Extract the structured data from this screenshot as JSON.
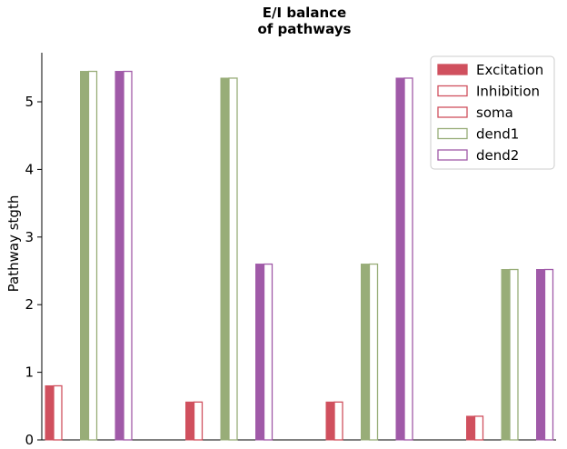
{
  "chart_data": {
    "type": "bar",
    "title_line1": "E/I balance",
    "title_line2": "of pathways",
    "xlabel": "",
    "ylabel": "Pathway stgth",
    "ylim": [
      0,
      5.75
    ],
    "yticks": [
      "0",
      "1",
      "2",
      "3",
      "4",
      "5"
    ],
    "groups": 4,
    "series": [
      {
        "name": "soma",
        "excitation": [
          0.8,
          0.56,
          0.56,
          0.35
        ],
        "inhibition": [
          0.8,
          0.56,
          0.56,
          0.35
        ],
        "color": "#d0505e"
      },
      {
        "name": "dend1",
        "excitation": [
          5.45,
          5.35,
          2.6,
          2.52
        ],
        "inhibition": [
          5.45,
          5.35,
          2.6,
          2.52
        ],
        "color": "#98ad78"
      },
      {
        "name": "dend2",
        "excitation": [
          5.45,
          2.6,
          5.35,
          2.52
        ],
        "inhibition": [
          5.45,
          2.6,
          5.35,
          2.52
        ],
        "color": "#a05aa8"
      }
    ],
    "legend": [
      {
        "label": "Excitation",
        "style": "filled",
        "color": "#d0505e"
      },
      {
        "label": "Inhibition",
        "style": "outline",
        "color": "#d0505e"
      },
      {
        "label": "soma",
        "style": "outline",
        "color": "#d0505e"
      },
      {
        "label": "dend1",
        "style": "outline",
        "color": "#98ad78"
      },
      {
        "label": "dend2",
        "style": "outline",
        "color": "#a05aa8"
      }
    ],
    "legend_position": "top-right",
    "grid": false
  }
}
